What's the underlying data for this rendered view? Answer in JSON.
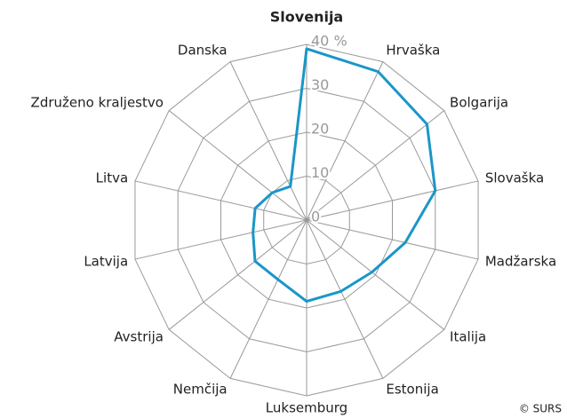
{
  "chart_data": {
    "type": "radar",
    "title": "Slovenija",
    "categories": [
      "Slovenija",
      "Hrvaška",
      "Bolgarija",
      "Slovaška",
      "Madžarska",
      "Italija",
      "Estonija",
      "Luksemburg",
      "Nemčija",
      "Avstrija",
      "Latvija",
      "Litva",
      "Združeno kraljestvo",
      "Danska"
    ],
    "values": [
      39,
      37.5,
      35,
      30,
      23,
      19,
      18,
      18.5,
      15,
      15,
      12.5,
      12,
      10,
      8.5
    ],
    "color": "#1a96c8",
    "ylim": [
      0,
      40
    ],
    "yticks": [
      0,
      10,
      20,
      30,
      {
        "value": 40,
        "label": "40 %"
      }
    ],
    "grid": true,
    "source": "© SURS"
  }
}
